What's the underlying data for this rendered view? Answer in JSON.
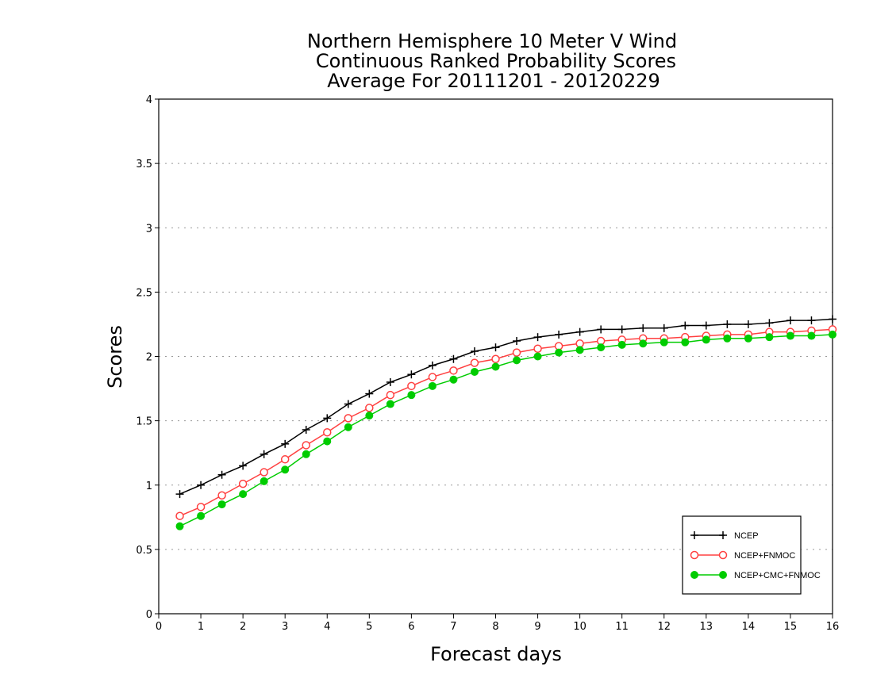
{
  "chart_data": {
    "type": "line",
    "title_lines": [
      "Northern Hemisphere 10 Meter V Wind",
      "Continuous Ranked Probability Scores",
      "Average For 20111201 - 20120229"
    ],
    "xlabel": "Forecast days",
    "ylabel": "Scores",
    "xlim": [
      0,
      16
    ],
    "ylim": [
      0,
      4
    ],
    "xticks": [
      0,
      1,
      2,
      3,
      4,
      5,
      6,
      7,
      8,
      9,
      10,
      11,
      12,
      13,
      14,
      15,
      16
    ],
    "yticks": [
      0,
      0.5,
      1,
      1.5,
      2,
      2.5,
      3,
      3.5,
      4
    ],
    "ytick_labels": [
      "0",
      "0.5",
      "1",
      "1.5",
      "2",
      "2.5",
      "3",
      "3.5",
      "4"
    ],
    "grid": "horizontal dotted",
    "legend_position": "bottom-right",
    "x": [
      0.5,
      1,
      1.5,
      2,
      2.5,
      3,
      3.5,
      4,
      4.5,
      5,
      5.5,
      6,
      6.5,
      7,
      7.5,
      8,
      8.5,
      9,
      9.5,
      10,
      10.5,
      11,
      11.5,
      12,
      12.5,
      13,
      13.5,
      14,
      14.5,
      15,
      15.5,
      16
    ],
    "series": [
      {
        "name": "NCEP",
        "color": "#000000",
        "marker": "plus",
        "values": [
          0.93,
          1.0,
          1.08,
          1.15,
          1.24,
          1.32,
          1.43,
          1.52,
          1.63,
          1.71,
          1.8,
          1.86,
          1.93,
          1.98,
          2.04,
          2.07,
          2.12,
          2.15,
          2.17,
          2.19,
          2.21,
          2.21,
          2.22,
          2.22,
          2.24,
          2.24,
          2.25,
          2.25,
          2.26,
          2.28,
          2.28,
          2.29
        ]
      },
      {
        "name": "NCEP+FNMOC",
        "color": "#ff4040",
        "marker": "open-circle",
        "values": [
          0.76,
          0.83,
          0.92,
          1.01,
          1.1,
          1.2,
          1.31,
          1.41,
          1.52,
          1.6,
          1.7,
          1.77,
          1.84,
          1.89,
          1.95,
          1.98,
          2.03,
          2.06,
          2.08,
          2.1,
          2.12,
          2.13,
          2.14,
          2.14,
          2.15,
          2.16,
          2.17,
          2.17,
          2.19,
          2.19,
          2.2,
          2.21
        ]
      },
      {
        "name": "NCEP+CMC+FNMOC",
        "color": "#00cc00",
        "marker": "filled-circle",
        "values": [
          0.68,
          0.76,
          0.85,
          0.93,
          1.03,
          1.12,
          1.24,
          1.34,
          1.45,
          1.54,
          1.63,
          1.7,
          1.77,
          1.82,
          1.88,
          1.92,
          1.97,
          2.0,
          2.03,
          2.05,
          2.07,
          2.09,
          2.1,
          2.11,
          2.11,
          2.13,
          2.14,
          2.14,
          2.15,
          2.16,
          2.16,
          2.17
        ]
      }
    ]
  }
}
